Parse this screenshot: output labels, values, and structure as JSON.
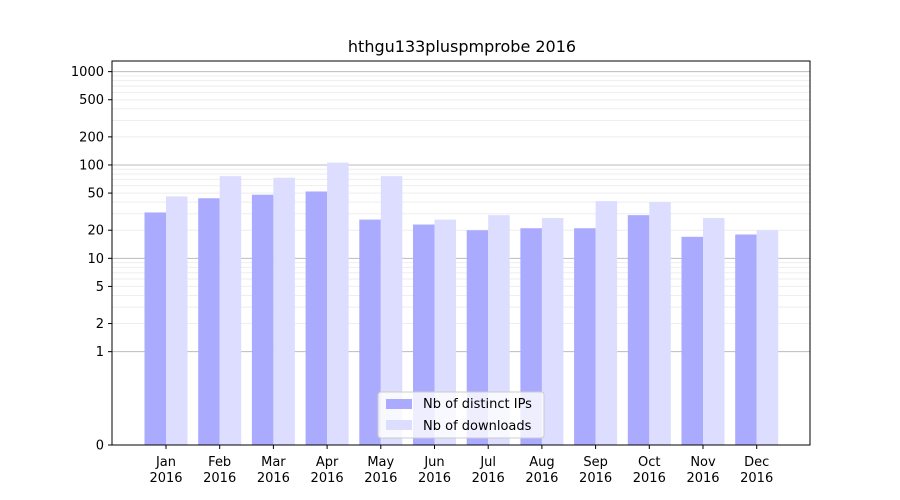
{
  "chart_data": {
    "type": "bar",
    "title": "hthgu133pluspmprobe 2016",
    "xlabel": "",
    "ylabel": "",
    "y_scale": "symlog",
    "ylim": [
      0,
      1300
    ],
    "y_ticks": [
      0,
      1,
      2,
      5,
      10,
      20,
      50,
      100,
      200,
      500,
      1000
    ],
    "grid": "horizontal",
    "legend_position": "bottom-center",
    "categories": [
      [
        "Jan",
        "2016"
      ],
      [
        "Feb",
        "2016"
      ],
      [
        "Mar",
        "2016"
      ],
      [
        "Apr",
        "2016"
      ],
      [
        "May",
        "2016"
      ],
      [
        "Jun",
        "2016"
      ],
      [
        "Jul",
        "2016"
      ],
      [
        "Aug",
        "2016"
      ],
      [
        "Sep",
        "2016"
      ],
      [
        "Oct",
        "2016"
      ],
      [
        "Nov",
        "2016"
      ],
      [
        "Dec",
        "2016"
      ]
    ],
    "series": [
      {
        "name": "Nb of distinct IPs",
        "color": "#aaaaff",
        "values": [
          31,
          44,
          48,
          52,
          26,
          23,
          20,
          21,
          21,
          29,
          17,
          18
        ]
      },
      {
        "name": "Nb of downloads",
        "color": "#ddddff",
        "values": [
          46,
          76,
          73,
          106,
          76,
          26,
          29,
          27,
          41,
          40,
          27,
          20
        ]
      }
    ]
  }
}
